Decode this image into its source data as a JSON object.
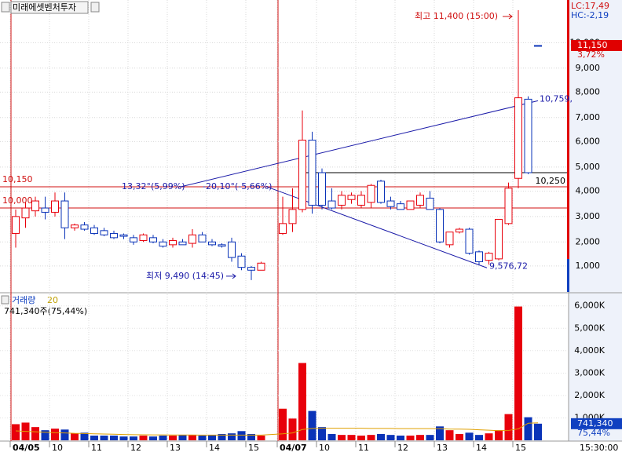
{
  "chart_data": [
    {
      "type": "candlestick",
      "title": "미래에셋벤처투자",
      "categories": [
        "04/05",
        null,
        null,
        null,
        "10",
        null,
        null,
        null,
        "11",
        null,
        null,
        null,
        "12",
        null,
        null,
        null,
        "13",
        null,
        null,
        null,
        "14",
        null,
        null,
        null,
        "15",
        null,
        "04/07",
        null,
        null,
        null,
        "10",
        null,
        null,
        null,
        "11",
        null,
        null,
        null,
        "12",
        null,
        null,
        null,
        "13",
        null,
        null,
        null,
        "14",
        null,
        null,
        null,
        "15",
        null,
        null
      ],
      "open": [
        9820,
        9930,
        9980,
        10000,
        9970,
        10050,
        9860,
        9880,
        9860,
        9840,
        9820,
        9810,
        9790,
        9770,
        9790,
        9760,
        9740,
        9760,
        9750,
        9810,
        9760,
        9740,
        9760,
        9660,
        9580,
        9560,
        9820,
        9890,
        9990,
        10480,
        10250,
        10050,
        10020,
        10060,
        10020,
        10040,
        10190,
        10050,
        10030,
        9990,
        10020,
        10070,
        9990,
        9740,
        9830,
        9850,
        9690,
        9630,
        9640,
        9890,
        10210,
        10770,
        11150
      ],
      "high": [
        9990,
        10040,
        10080,
        10080,
        10110,
        10110,
        9890,
        9900,
        9880,
        9860,
        9840,
        9820,
        9810,
        9820,
        9810,
        9780,
        9790,
        9780,
        9850,
        9830,
        9780,
        9750,
        9790,
        9680,
        9590,
        9620,
        10080,
        10140,
        10690,
        10540,
        10280,
        10140,
        10120,
        10110,
        10120,
        10170,
        10200,
        10080,
        10050,
        10050,
        10110,
        10120,
        10000,
        9830,
        9860,
        9860,
        9700,
        9690,
        9920,
        10180,
        11400,
        10790,
        11150
      ],
      "low": [
        9720,
        9860,
        9940,
        9920,
        9940,
        9780,
        9840,
        9840,
        9810,
        9800,
        9780,
        9780,
        9740,
        9760,
        9750,
        9720,
        9720,
        9740,
        9720,
        9760,
        9730,
        9720,
        9620,
        9560,
        9490,
        9560,
        9810,
        9830,
        9970,
        9960,
        9990,
        9990,
        9990,
        10030,
        10000,
        10000,
        10030,
        9990,
        9990,
        9990,
        10000,
        9990,
        9750,
        9720,
        9820,
        9670,
        9600,
        9600,
        9630,
        9880,
        10140,
        10240,
        11150
      ],
      "close": [
        9940,
        10000,
        10050,
        9970,
        10050,
        9860,
        9880,
        9850,
        9820,
        9810,
        9790,
        9800,
        9760,
        9810,
        9760,
        9730,
        9770,
        9740,
        9810,
        9760,
        9740,
        9730,
        9650,
        9580,
        9560,
        9610,
        9890,
        9990,
        10480,
        10020,
        10020,
        10000,
        10090,
        10090,
        10090,
        10160,
        10040,
        10010,
        9990,
        10050,
        10090,
        9990,
        9760,
        9830,
        9850,
        9680,
        9620,
        9680,
        9920,
        10140,
        10780,
        10250,
        11150
      ],
      "up_color": "#e8000b",
      "down_color": "#0a33b8",
      "ylim": [
        9406,
        11472
      ],
      "yticks": [
        {
          "value": 11170,
          "label": "10,000"
        },
        {
          "value": 10990,
          "label": "9,000"
        },
        {
          "value": 10820,
          "label": "8,000"
        },
        {
          "value": 10640,
          "label": "7,000"
        },
        {
          "value": 10470,
          "label": "6,000"
        },
        {
          "value": 10290,
          "label": "5,000"
        },
        {
          "value": 10120,
          "label": "4,000"
        },
        {
          "value": 9940,
          "label": "3,000"
        },
        {
          "value": 9760,
          "label": "2,000"
        },
        {
          "value": 9590,
          "label": "1,000"
        }
      ],
      "reference_lines": [
        {
          "value": 10150,
          "label": "10,150",
          "color": "#d01010"
        },
        {
          "value": 10000,
          "label": "10,000",
          "color": "#d01010"
        },
        {
          "value": 10250,
          "label": "10,250",
          "color": "#000000"
        }
      ],
      "trend_lines": [
        {
          "label": "13,32°(5,99%)",
          "from": 10150,
          "to": 10759,
          "end_label": "10,759,"
        },
        {
          "label": "-20,10°(-5,66%)",
          "from": 10150,
          "to": 9576.72,
          "end_label": "9,576,72"
        }
      ],
      "annotations": [
        {
          "text": "최고 11,400 (15:00)",
          "value": 11400
        },
        {
          "text": "최저 9,490 (14:45)",
          "value": 9490
        }
      ],
      "last_price": {
        "value": 11150,
        "label": "11,150"
      },
      "change_label": "3,72%",
      "indicators": [
        "LC:17,49",
        "HC:-2,19"
      ]
    },
    {
      "type": "bar",
      "title": "거래량",
      "ma_period": 20,
      "values": [
        720000,
        790000,
        590000,
        450000,
        520000,
        480000,
        310000,
        340000,
        210000,
        210000,
        210000,
        170000,
        170000,
        210000,
        170000,
        210000,
        210000,
        240000,
        240000,
        210000,
        240000,
        280000,
        310000,
        410000,
        280000,
        210000,
        1410000,
        970000,
        3450000,
        1310000,
        590000,
        280000,
        240000,
        240000,
        210000,
        240000,
        280000,
        240000,
        210000,
        210000,
        240000,
        240000,
        620000,
        450000,
        280000,
        340000,
        240000,
        310000,
        450000,
        1170000,
        5970000,
        1030000,
        741340
      ],
      "ma_values": [
        420000,
        400000,
        380000,
        360000,
        340000,
        330000,
        310000,
        300000,
        290000,
        280000,
        270000,
        260000,
        250000,
        245000,
        240000,
        240000,
        235000,
        235000,
        235000,
        230000,
        230000,
        230000,
        230000,
        230000,
        230000,
        230000,
        290000,
        330000,
        480000,
        530000,
        540000,
        540000,
        540000,
        540000,
        540000,
        530000,
        530000,
        530000,
        520000,
        520000,
        520000,
        520000,
        520000,
        500000,
        500000,
        490000,
        470000,
        450000,
        430000,
        440000,
        510000,
        760000,
        780000
      ],
      "ma_color": "#e0a000",
      "ylim": [
        0,
        6480000
      ],
      "yticks": [
        {
          "value": 1000000,
          "label": "1,000K"
        },
        {
          "value": 2000000,
          "label": "2,000K"
        },
        {
          "value": 3000000,
          "label": "3,000K"
        },
        {
          "value": 4000000,
          "label": "4,000K"
        },
        {
          "value": 5000000,
          "label": "5,000K"
        },
        {
          "value": 6000000,
          "label": "6,000K"
        }
      ],
      "summary": "741,340주(75,44%)",
      "last_value": {
        "value": 741340,
        "label": "741,340"
      },
      "last_ratio_label": "75,44%"
    }
  ],
  "time_label": "15:30:00"
}
